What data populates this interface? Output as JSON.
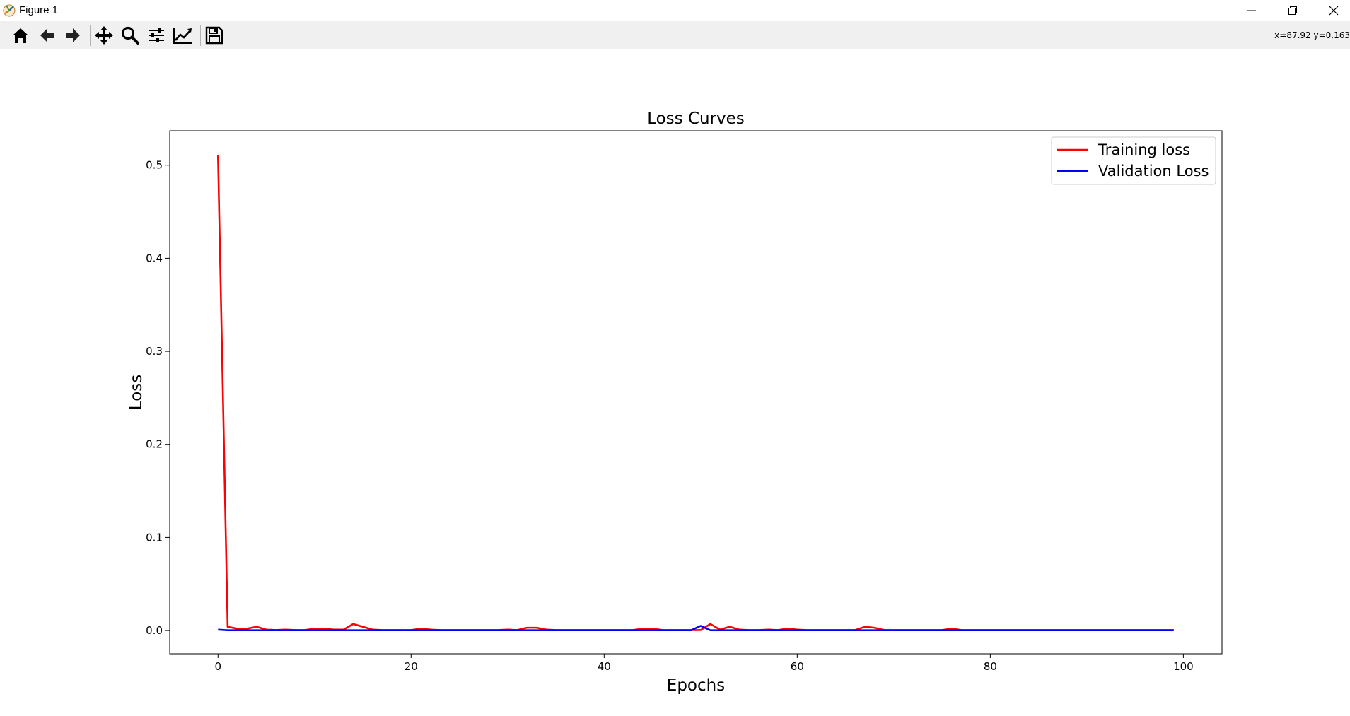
{
  "window": {
    "title": "Figure 1",
    "app_icon": "matplotlib-icon",
    "controls": [
      {
        "name": "minimize-button",
        "icon": "minimize-icon"
      },
      {
        "name": "restore-button",
        "icon": "restore-icon"
      },
      {
        "name": "close-button",
        "icon": "close-icon"
      }
    ]
  },
  "toolbar": {
    "buttons": [
      {
        "name": "home-button",
        "icon": "home-icon"
      },
      {
        "name": "back-button",
        "icon": "arrow-left-icon"
      },
      {
        "name": "forward-button",
        "icon": "arrow-right-icon"
      },
      {
        "name": "pan-button",
        "icon": "move-icon"
      },
      {
        "name": "zoom-button",
        "icon": "magnifier-icon"
      },
      {
        "name": "subplots-button",
        "icon": "sliders-icon"
      },
      {
        "name": "edit-axes-button",
        "icon": "line-chart-icon"
      },
      {
        "name": "save-button",
        "icon": "floppy-disk-icon"
      }
    ],
    "coordinates": "x=87.92 y=0.163"
  },
  "colors": {
    "training": "#ff0000",
    "validation": "#0000ff"
  },
  "chart_data": {
    "type": "line",
    "title": "Loss Curves",
    "xlabel": "Epochs",
    "ylabel": "Loss",
    "xlim": [
      -5,
      104
    ],
    "ylim": [
      -0.025,
      0.537
    ],
    "xticks": [
      0,
      20,
      40,
      60,
      80,
      100
    ],
    "yticks": [
      0.0,
      0.1,
      0.2,
      0.3,
      0.4,
      0.5
    ],
    "ytick_labels": [
      "0.0",
      "0.1",
      "0.2",
      "0.3",
      "0.4",
      "0.5"
    ],
    "grid": false,
    "legend_position": "top-right",
    "series": [
      {
        "name": "Training loss",
        "color": "#ff0000",
        "x": [
          0,
          1,
          2,
          3,
          4,
          5,
          6,
          7,
          8,
          9,
          10,
          11,
          12,
          13,
          14,
          15,
          16,
          17,
          18,
          19,
          20,
          21,
          22,
          23,
          24,
          25,
          26,
          27,
          28,
          29,
          30,
          31,
          32,
          33,
          34,
          35,
          36,
          37,
          38,
          39,
          40,
          41,
          42,
          43,
          44,
          45,
          46,
          47,
          48,
          49,
          50,
          51,
          52,
          53,
          54,
          55,
          56,
          57,
          58,
          59,
          60,
          61,
          62,
          63,
          64,
          65,
          66,
          67,
          68,
          69,
          70,
          71,
          72,
          73,
          74,
          75,
          76,
          77,
          78,
          79,
          80,
          81,
          82,
          83,
          84,
          85,
          86,
          87,
          88,
          89,
          90,
          91,
          92,
          93,
          94,
          95,
          96,
          97,
          98,
          99
        ],
        "y": [
          0.511,
          0.004,
          0.002,
          0.002,
          0.004,
          0.001,
          0.0005,
          0.001,
          0.0005,
          0.0005,
          0.002,
          0.002,
          0.001,
          0.001,
          0.007,
          0.004,
          0.001,
          0.0005,
          0.0005,
          0.0005,
          0.0005,
          0.002,
          0.001,
          0.0005,
          0.0005,
          0.0005,
          0.0005,
          0.0005,
          0.0005,
          0.0005,
          0.001,
          0.0005,
          0.003,
          0.003,
          0.001,
          0.0005,
          0.0005,
          0.0005,
          0.0005,
          0.0005,
          0.0005,
          0.0005,
          0.0005,
          0.0005,
          0.002,
          0.002,
          0.0005,
          0.0005,
          0.0005,
          0.0005,
          0.0005,
          0.007,
          0.001,
          0.004,
          0.001,
          0.0005,
          0.0005,
          0.001,
          0.0005,
          0.002,
          0.001,
          0.0005,
          0.0005,
          0.0005,
          0.0005,
          0.0005,
          0.0005,
          0.004,
          0.003,
          0.0005,
          0.0005,
          0.0005,
          0.0005,
          0.0005,
          0.0005,
          0.0005,
          0.002,
          0.0005,
          0.0005,
          0.0005,
          0.0005,
          0.0005,
          0.0005,
          0.0005,
          0.0005,
          0.0005,
          0.0005,
          0.0005,
          0.0005,
          0.0005,
          0.0005,
          0.0005,
          0.0005,
          0.0005,
          0.0005,
          0.0005,
          0.0005,
          0.0005,
          0.0005,
          0.0005
        ]
      },
      {
        "name": "Validation Loss",
        "color": "#0000ff",
        "x": [
          0,
          1,
          2,
          3,
          4,
          5,
          6,
          7,
          8,
          9,
          10,
          11,
          12,
          13,
          14,
          15,
          16,
          17,
          18,
          19,
          20,
          21,
          22,
          23,
          24,
          25,
          26,
          27,
          28,
          29,
          30,
          31,
          32,
          33,
          34,
          35,
          36,
          37,
          38,
          39,
          40,
          41,
          42,
          43,
          44,
          45,
          46,
          47,
          48,
          49,
          50,
          51,
          52,
          53,
          54,
          55,
          56,
          57,
          58,
          59,
          60,
          61,
          62,
          63,
          64,
          65,
          66,
          67,
          68,
          69,
          70,
          71,
          72,
          73,
          74,
          75,
          76,
          77,
          78,
          79,
          80,
          81,
          82,
          83,
          84,
          85,
          86,
          87,
          88,
          89,
          90,
          91,
          92,
          93,
          94,
          95,
          96,
          97,
          98,
          99
        ],
        "y": [
          0.001,
          0.0003,
          0.0003,
          0.0003,
          0.0003,
          0.0003,
          0.0003,
          0.0003,
          0.0003,
          0.0003,
          0.0003,
          0.0003,
          0.0003,
          0.0003,
          0.0003,
          0.0003,
          0.0003,
          0.0003,
          0.0003,
          0.0003,
          0.0003,
          0.0003,
          0.0003,
          0.0003,
          0.0003,
          0.0003,
          0.0003,
          0.0003,
          0.0003,
          0.0003,
          0.0003,
          0.0003,
          0.0003,
          0.0003,
          0.0003,
          0.0003,
          0.0003,
          0.0003,
          0.0003,
          0.0003,
          0.0003,
          0.0003,
          0.0003,
          0.0003,
          0.0003,
          0.0003,
          0.0003,
          0.0003,
          0.0003,
          0.0003,
          0.005,
          0.0003,
          0.0003,
          0.0003,
          0.0003,
          0.0003,
          0.0003,
          0.0003,
          0.0003,
          0.0003,
          0.0003,
          0.0003,
          0.0003,
          0.0003,
          0.0003,
          0.0003,
          0.0003,
          0.0003,
          0.0003,
          0.0003,
          0.0003,
          0.0003,
          0.0003,
          0.0003,
          0.0003,
          0.0003,
          0.0003,
          0.0003,
          0.0003,
          0.0003,
          0.0003,
          0.0003,
          0.0003,
          0.0003,
          0.0003,
          0.0003,
          0.0003,
          0.0003,
          0.0003,
          0.0003,
          0.0003,
          0.0003,
          0.0003,
          0.0003,
          0.0003,
          0.0003,
          0.0003,
          0.0003,
          0.0003,
          0.0003
        ]
      }
    ]
  }
}
